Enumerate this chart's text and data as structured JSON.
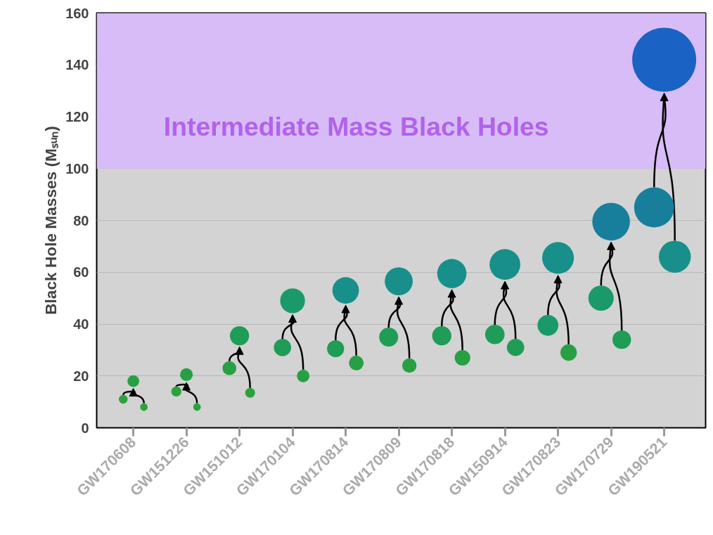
{
  "chart_data": {
    "type": "bubble",
    "ylabel": "Black Hole Masses (Mₛᵤₙ)",
    "categories": [
      "GW170608",
      "GW151226",
      "GW151012",
      "GW170104",
      "GW170814",
      "GW170809",
      "GW170818",
      "GW150914",
      "GW170823",
      "GW170729",
      "GW190521"
    ],
    "ylim": [
      0,
      160
    ],
    "yticks": [
      0,
      20,
      40,
      60,
      80,
      100,
      120,
      140,
      160
    ],
    "grid": "y",
    "marker": "circle",
    "series": [
      {
        "colors": [
          "#2ca23c",
          "#2ca23c",
          "#27a044",
          "#1f9c55",
          "#1f9c55",
          "#1f9c55",
          "#1f9c55",
          "#1f9c55",
          "#1a9a6a",
          "#1a9a6a",
          "#177f9c"
        ],
        "values": [
          11,
          14,
          23,
          31,
          30.5,
          35,
          35.5,
          36,
          39.5,
          50,
          85
        ],
        "sizes": [
          0.019,
          0.025,
          0.047,
          0.073,
          0.071,
          0.088,
          0.09,
          0.092,
          0.106,
          0.156,
          0.391
        ]
      },
      {
        "colors": [
          "#2ca23c",
          "#2ca23c",
          "#2ca23c",
          "#27a044",
          "#27a044",
          "#27a044",
          "#27a044",
          "#1f9c55",
          "#27a044",
          "#1f9c55",
          "#188f8a"
        ],
        "values": [
          8,
          8,
          13.5,
          20,
          25,
          24,
          27,
          31,
          29,
          34,
          66
        ],
        "sizes": [
          0.014,
          0.014,
          0.024,
          0.039,
          0.053,
          0.05,
          0.059,
          0.073,
          0.066,
          0.084,
          0.25
        ]
      },
      {
        "colors": [
          "#27a044",
          "#27a044",
          "#1f9c55",
          "#1a9a6a",
          "#188f8a",
          "#188f8a",
          "#188f8a",
          "#188f8a",
          "#188f8a",
          "#177f9c",
          "#1a62c4"
        ],
        "values": [
          18,
          20.5,
          35.5,
          49,
          53,
          56.5,
          59.5,
          63,
          65.5,
          79.5,
          142
        ],
        "sizes": [
          0.034,
          0.04,
          0.09,
          0.151,
          0.172,
          0.191,
          0.209,
          0.231,
          0.247,
          0.347,
          1
        ]
      }
    ],
    "bands": [
      {
        "axis": "y",
        "from": 100,
        "to": 160,
        "label": "Intermediate Mass Black Holes",
        "color": "#d8bcf8"
      }
    ]
  }
}
